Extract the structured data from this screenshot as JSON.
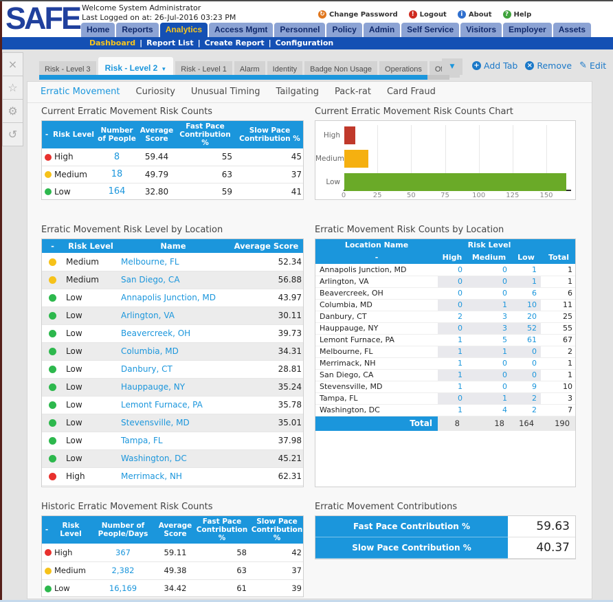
{
  "header": {
    "logo": "SAFE",
    "welcome": "Welcome System Administrator",
    "last_logged": "Last Logged on at: 26-Jul-2016 03:23 PM",
    "links": [
      {
        "label": "Change Password",
        "icon": "key-icon",
        "color": "#e0761c"
      },
      {
        "label": "Logout",
        "icon": "logout-icon",
        "color": "#cf2b20"
      },
      {
        "label": "About",
        "icon": "info-icon",
        "color": "#2f6fce"
      },
      {
        "label": "Help",
        "icon": "help-icon",
        "color": "#3fa33c"
      }
    ]
  },
  "nav": {
    "tabs": [
      "Home",
      "Reports",
      "Analytics",
      "Access Mgmt",
      "Personnel",
      "Policy",
      "Admin",
      "Self Service",
      "Visitors",
      "Employer",
      "Assets"
    ],
    "active_tab": "Analytics",
    "subnav": [
      "Dashboard",
      "Report List",
      "Create Report",
      "Configuration"
    ],
    "active_subnav": "Dashboard"
  },
  "sidebar": {
    "icons": [
      "close-icon",
      "star-icon",
      "gear-icon",
      "history-icon"
    ]
  },
  "tabbar": {
    "tabs": [
      "Risk - Level 3",
      "Risk - Level 2",
      "Risk - Level 1",
      "Alarm",
      "Identity",
      "Badge Non Usage",
      "Operations",
      "Office"
    ],
    "active_tab": "Risk - Level 2",
    "actions": [
      {
        "label": "Add Tab",
        "icon": "plus-circle-icon"
      },
      {
        "label": "Remove",
        "icon": "x-circle-icon"
      },
      {
        "label": "Edit",
        "icon": "pencil-icon"
      }
    ]
  },
  "report_tabs": {
    "tabs": [
      "Erratic Movement",
      "Curiosity",
      "Unusual Timing",
      "Tailgating",
      "Pack-rat",
      "Card Fraud"
    ],
    "active_tab": "Erratic Movement"
  },
  "risk_colors": {
    "high": "#e8312e",
    "medium": "#f6c21a",
    "low": "#2db84d"
  },
  "current_counts": {
    "title": "Current Erratic Movement Risk Counts",
    "headers": [
      "-",
      "Risk Level",
      "Number of People",
      "Average Score",
      "Fast Pace Contribution %",
      "Slow Pace Contribution %"
    ],
    "rows": [
      {
        "level": "High",
        "people": "8",
        "avg": "59.44",
        "fast": "55",
        "slow": "45"
      },
      {
        "level": "Medium",
        "people": "18",
        "avg": "49.79",
        "fast": "63",
        "slow": "37"
      },
      {
        "level": "Low",
        "people": "164",
        "avg": "32.80",
        "fast": "59",
        "slow": "41"
      }
    ]
  },
  "chart": {
    "title": "Current Erratic Movement Risk Counts Chart",
    "chart_data": {
      "type": "bar",
      "orientation": "horizontal",
      "categories": [
        "High",
        "Medium",
        "Low"
      ],
      "values": [
        8,
        18,
        164
      ],
      "colors": [
        "#c0392b",
        "#f5b010",
        "#6aaa28"
      ],
      "xlim": [
        0,
        170
      ],
      "xticks": [
        0,
        25,
        50,
        75,
        100,
        125,
        150
      ],
      "grid": true,
      "legend": false
    }
  },
  "level_by_location": {
    "title": "Erratic Movement Risk Level by Location",
    "headers": [
      "-",
      "Risk Level",
      "Name",
      "Average Score"
    ],
    "rows": [
      {
        "level": "Medium",
        "name": "Melbourne, FL",
        "score": "52.34"
      },
      {
        "level": "Medium",
        "name": "San Diego, CA",
        "score": "56.88"
      },
      {
        "level": "Low",
        "name": "Annapolis Junction, MD",
        "score": "43.97"
      },
      {
        "level": "Low",
        "name": "Arlington, VA",
        "score": "30.11"
      },
      {
        "level": "Low",
        "name": "Beavercreek, OH",
        "score": "39.73"
      },
      {
        "level": "Low",
        "name": "Columbia, MD",
        "score": "34.31"
      },
      {
        "level": "Low",
        "name": "Danbury, CT",
        "score": "28.81"
      },
      {
        "level": "Low",
        "name": "Hauppauge, NY",
        "score": "35.24"
      },
      {
        "level": "Low",
        "name": "Lemont Furnace, PA",
        "score": "35.78"
      },
      {
        "level": "Low",
        "name": "Stevensville, MD",
        "score": "35.01"
      },
      {
        "level": "Low",
        "name": "Tampa, FL",
        "score": "37.98"
      },
      {
        "level": "Low",
        "name": "Washington, DC",
        "score": "45.21"
      },
      {
        "level": "High",
        "name": "Merrimack, NH",
        "score": "62.31"
      }
    ]
  },
  "counts_by_location": {
    "title": "Erratic Movement Risk Counts by Location",
    "group_headers": [
      "Location Name",
      "Risk Level"
    ],
    "sub_headers": [
      "-",
      "High",
      "Medium",
      "Low",
      "Total"
    ],
    "rows": [
      {
        "name": "Annapolis Junction, MD",
        "high": "0",
        "medium": "0",
        "low": "1",
        "total": "1"
      },
      {
        "name": "Arlington, VA",
        "high": "0",
        "medium": "0",
        "low": "1",
        "total": "1"
      },
      {
        "name": "Beavercreek, OH",
        "high": "0",
        "medium": "0",
        "low": "6",
        "total": "6"
      },
      {
        "name": "Columbia, MD",
        "high": "0",
        "medium": "1",
        "low": "10",
        "total": "11"
      },
      {
        "name": "Danbury, CT",
        "high": "2",
        "medium": "3",
        "low": "20",
        "total": "25"
      },
      {
        "name": "Hauppauge, NY",
        "high": "0",
        "medium": "3",
        "low": "52",
        "total": "55"
      },
      {
        "name": "Lemont Furnace, PA",
        "high": "1",
        "medium": "5",
        "low": "61",
        "total": "67"
      },
      {
        "name": "Melbourne, FL",
        "high": "1",
        "medium": "1",
        "low": "0",
        "total": "2"
      },
      {
        "name": "Merrimack, NH",
        "high": "1",
        "medium": "0",
        "low": "0",
        "total": "1"
      },
      {
        "name": "San Diego, CA",
        "high": "1",
        "medium": "0",
        "low": "0",
        "total": "1"
      },
      {
        "name": "Stevensville, MD",
        "high": "1",
        "medium": "0",
        "low": "9",
        "total": "10"
      },
      {
        "name": "Tampa, FL",
        "high": "0",
        "medium": "1",
        "low": "2",
        "total": "3"
      },
      {
        "name": "Washington, DC",
        "high": "1",
        "medium": "4",
        "low": "2",
        "total": "7"
      }
    ],
    "total_row": {
      "label": "Total",
      "high": "8",
      "medium": "18",
      "low": "164",
      "total": "190"
    }
  },
  "historic_counts": {
    "title": "Historic Erratic Movement Risk Counts",
    "headers": [
      "-",
      "Risk Level",
      "Number of People/Days",
      "Average Score",
      "Fast Pace Contribution %",
      "Slow Pace Contribution %"
    ],
    "rows": [
      {
        "level": "High",
        "people": "367",
        "avg": "59.11",
        "fast": "58",
        "slow": "42"
      },
      {
        "level": "Medium",
        "people": "2,382",
        "avg": "49.38",
        "fast": "63",
        "slow": "37"
      },
      {
        "level": "Low",
        "people": "16,169",
        "avg": "34.42",
        "fast": "61",
        "slow": "39"
      }
    ]
  },
  "contributions": {
    "title": "Erratic Movement Contributions",
    "rows": [
      {
        "label": "Fast Pace Contribution %",
        "value": "59.63"
      },
      {
        "label": "Slow Pace Contribution %",
        "value": "40.37"
      }
    ]
  },
  "colors": {
    "table_header_blue": "#1b96dc",
    "nav_blue": "#1450b4",
    "nav_tab_inactive": "#8ca3d4",
    "gold": "#f7c51e",
    "link_blue": "#1b96dc",
    "high_header": "#c23b2b",
    "medium_header": "#f0ad0d",
    "low_header": "#79b82e"
  }
}
